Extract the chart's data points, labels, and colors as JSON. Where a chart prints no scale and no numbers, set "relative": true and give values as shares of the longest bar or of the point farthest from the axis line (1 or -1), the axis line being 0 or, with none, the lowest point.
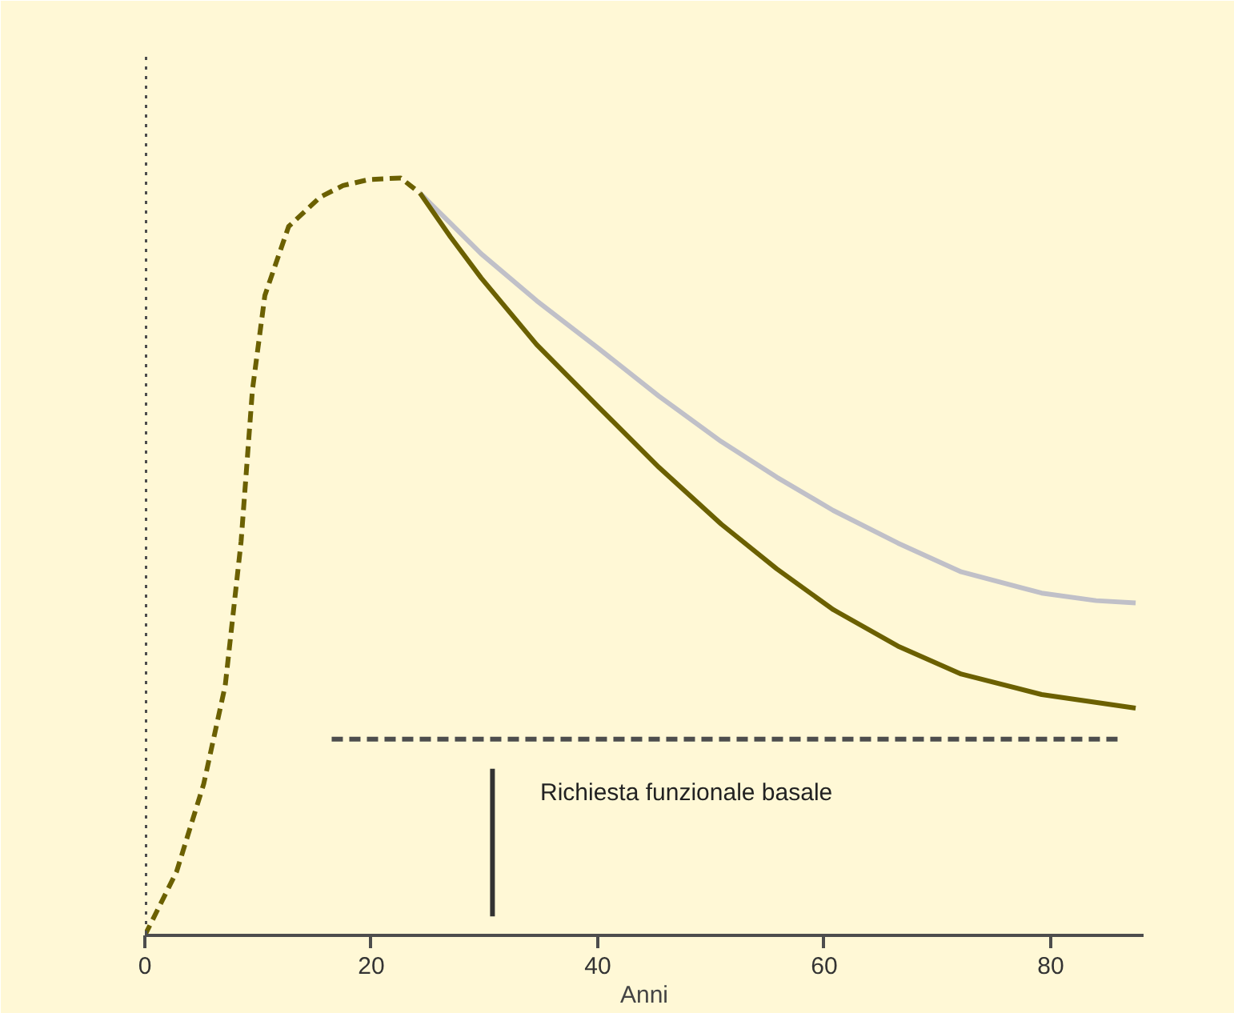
{
  "chart_data": {
    "type": "line",
    "relative": true,
    "xlabel": "Anni",
    "xlim": [
      0,
      88.2
    ],
    "xticks": [
      0,
      20,
      40,
      60,
      80
    ],
    "grid": false,
    "series": [
      {
        "color": "#6b6000",
        "line_style": "dashed",
        "x": [
          0,
          2.8,
          5.2,
          7.1,
          8.5,
          9.5,
          10.6,
          12.7,
          15.5,
          17.5,
          19.8,
          22.6,
          24.3
        ],
        "values": [
          0,
          0.084,
          0.2,
          0.33,
          0.52,
          0.72,
          0.845,
          0.936,
          0.975,
          0.99,
          0.998,
          1,
          0.98
        ]
      },
      {
        "color": "#c0c0c8",
        "line_style": "solid",
        "x": [
          24.3,
          27,
          29.7,
          34.6,
          39.9,
          45.4,
          50.9,
          55.8,
          60.8,
          66.5,
          72.1,
          79.2,
          84,
          87.5
        ],
        "values": [
          0.98,
          0.94,
          0.9,
          0.838,
          0.777,
          0.712,
          0.652,
          0.605,
          0.561,
          0.518,
          0.48,
          0.452,
          0.442,
          0.439
        ]
      },
      {
        "color": "#6b6000",
        "line_style": "solid",
        "x": [
          24.3,
          27,
          29.7,
          34.6,
          39.9,
          45.4,
          50.9,
          55.8,
          60.8,
          66.5,
          72.1,
          79.2,
          87.5
        ],
        "values": [
          0.98,
          0.922,
          0.868,
          0.78,
          0.7,
          0.618,
          0.543,
          0.484,
          0.43,
          0.382,
          0.345,
          0.318,
          0.3
        ]
      },
      {
        "color": "#4d4d4d",
        "line_style": "dashed",
        "x": [
          16.5,
          86.2
        ],
        "values": [
          0.259,
          0.259
        ]
      },
      {
        "color": "#333333",
        "line_style": "solid",
        "x": [
          30.7,
          30.7
        ],
        "values": [
          0.22,
          0.025
        ]
      }
    ],
    "ref_lines": [
      {
        "axis": "x",
        "value": 0,
        "color": "#4d4d4d",
        "line_style": "dotted"
      }
    ],
    "annotations": [
      "Richiesta funzionale basale"
    ]
  }
}
